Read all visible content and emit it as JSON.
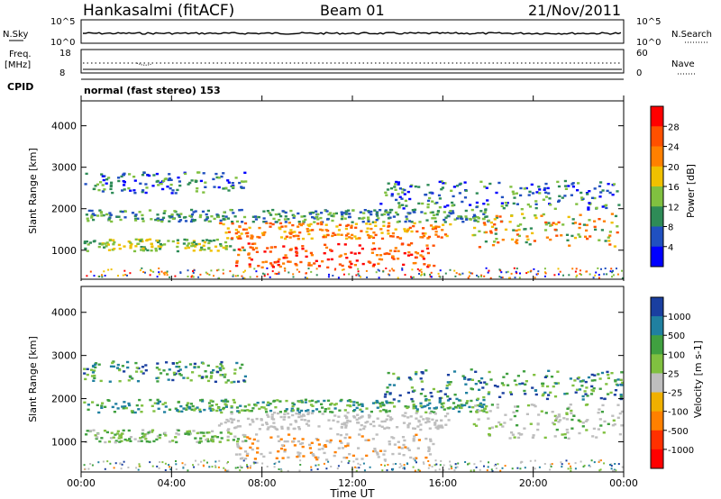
{
  "header": {
    "station": "Hankasalmi (fitACF)",
    "beam": "Beam 01",
    "date": "21/Nov/2011"
  },
  "top_panel": {
    "left_label": "N.Sky",
    "left_ticks": [
      "10^5",
      "10^0"
    ],
    "right_ticks": [
      "10^5",
      "10^0"
    ],
    "right_label": "N.Search"
  },
  "freq_panel": {
    "left_label_1": "Freq.",
    "left_label_2": "[MHz]",
    "left_ticks": [
      "18",
      "8"
    ],
    "right_ticks": [
      "60",
      "0"
    ],
    "right_label": "Nave",
    "cpid_label": "CPID",
    "cpid_text": "normal (fast stereo) 153"
  },
  "chart_data": [
    {
      "type": "heatmap",
      "title": "",
      "ylabel": "Slant Range [km]",
      "yticks": [
        "1000",
        "2000",
        "3000",
        "4000"
      ],
      "ylim": [
        300,
        4600
      ],
      "colorbar_label": "Power [dB]",
      "colorbar_ticks": [
        "4",
        "8",
        "12",
        "16",
        "20",
        "24",
        "28"
      ],
      "colorbar_colors": [
        "#0000ff",
        "#2050c0",
        "#2e8b57",
        "#80c040",
        "#f0c000",
        "#ff8000",
        "#ff5000",
        "#ff0000"
      ],
      "colorbar_range": [
        0,
        32
      ]
    },
    {
      "type": "heatmap",
      "title": "",
      "ylabel": "Velocity [m s^-1]",
      "ylabel_left": "Slant Range [km]",
      "yticks": [
        "1000",
        "2000",
        "3000",
        "4000"
      ],
      "ylim": [
        300,
        4600
      ],
      "colorbar_label": "Velocity [m s-1]",
      "colorbar_ticks": [
        "1000",
        "500",
        "100",
        "25",
        "-25",
        "-100",
        "-500",
        "-1000"
      ],
      "colorbar_colors": [
        "#1a3fa0",
        "#2080a0",
        "#40a040",
        "#80c040",
        "#bebebe",
        "#f0b000",
        "#ff8000",
        "#ff3000",
        "#ff0000"
      ]
    }
  ],
  "xaxis": {
    "label": "Time UT",
    "ticks": [
      "00:00",
      "04:00",
      "08:00",
      "12:00",
      "16:00",
      "20:00",
      "00:00"
    ]
  }
}
